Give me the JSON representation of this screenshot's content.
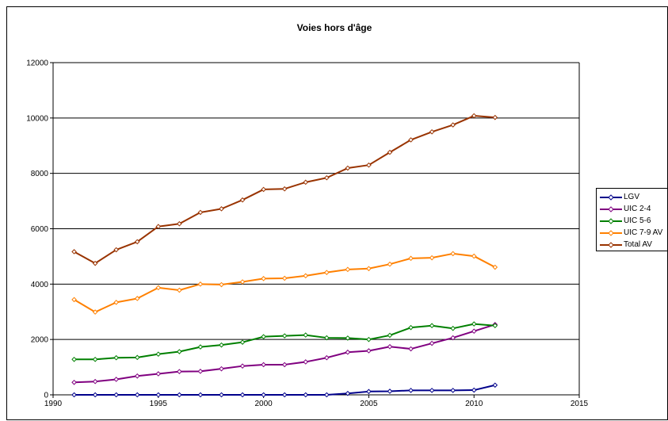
{
  "chart_data": {
    "type": "line",
    "title": "Voies hors d'âge",
    "xlabel": "",
    "ylabel": "",
    "xlim": [
      1990,
      2015
    ],
    "ylim": [
      0,
      12000
    ],
    "x_ticks": [
      "1990",
      "1995",
      "2000",
      "2005",
      "2010",
      "2015"
    ],
    "y_ticks": [
      "0",
      "2000",
      "4000",
      "6000",
      "8000",
      "10000",
      "12000"
    ],
    "grid": "horizontal",
    "legend_position": "right",
    "x": [
      1991,
      1992,
      1993,
      1994,
      1995,
      1996,
      1997,
      1998,
      1999,
      2000,
      2001,
      2002,
      2003,
      2004,
      2005,
      2006,
      2007,
      2008,
      2009,
      2010,
      2011
    ],
    "series": [
      {
        "name": "LGV",
        "color": "#00008B",
        "values": [
          0,
          0,
          0,
          0,
          0,
          0,
          0,
          0,
          0,
          0,
          0,
          0,
          0,
          50,
          120,
          130,
          160,
          160,
          160,
          170,
          350
        ]
      },
      {
        "name": "UIC 2-4",
        "color": "#800080",
        "values": [
          450,
          480,
          560,
          680,
          760,
          840,
          850,
          940,
          1040,
          1090,
          1090,
          1190,
          1340,
          1540,
          1590,
          1740,
          1660,
          1860,
          2060,
          2300,
          2540
        ]
      },
      {
        "name": "UIC 5-6",
        "color": "#008000",
        "values": [
          1280,
          1280,
          1340,
          1350,
          1470,
          1560,
          1730,
          1800,
          1900,
          2100,
          2130,
          2160,
          2060,
          2050,
          2000,
          2150,
          2430,
          2500,
          2400,
          2560,
          2500
        ]
      },
      {
        "name": "UIC 7-9 AV",
        "color": "#FF8000",
        "values": [
          3440,
          2990,
          3340,
          3480,
          3870,
          3780,
          4000,
          3980,
          4080,
          4200,
          4210,
          4300,
          4420,
          4530,
          4560,
          4720,
          4930,
          4950,
          5100,
          5010,
          4610
        ]
      },
      {
        "name": "Total AV",
        "color": "#993300",
        "values": [
          5170,
          4750,
          5240,
          5530,
          6080,
          6180,
          6590,
          6720,
          7040,
          7420,
          7440,
          7680,
          7840,
          8190,
          8300,
          8760,
          9210,
          9500,
          9750,
          10080,
          10020
        ]
      }
    ]
  }
}
